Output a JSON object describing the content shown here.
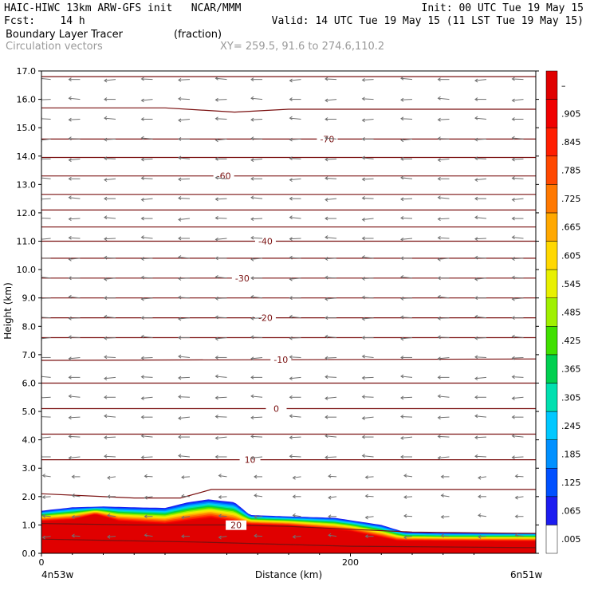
{
  "header": {
    "line1_left": "HAIC-HIWC 13km ARW-GFS init   NCAR/MMM",
    "line1_right": "Init: 00 UTC Tue 19 May 15",
    "line2_left": "Fcst:    14 h",
    "line2_right": "Valid: 14 UTC Tue 19 May 15 (11 LST Tue 19 May 15)",
    "line3_field": "Boundary Layer Tracer",
    "line3_units": "(fraction)",
    "line4_field": "Circulation vectors",
    "line4_xy": "XY= 259.5, 91.6 to 274.6,110.2"
  },
  "colors": {
    "contour": "#7a1010",
    "vector": "#707070",
    "header_grey": "#9a9a9a"
  },
  "chart_data": {
    "type": "heatmap",
    "xlabel": "Distance (km)",
    "ylabel": "Height (km)",
    "xlim": [
      0,
      320
    ],
    "ylim": [
      0,
      17
    ],
    "x_ticks": [
      {
        "value": 0,
        "label": "0"
      },
      {
        "value": 200,
        "label": "200"
      }
    ],
    "y_ticks": [
      "0.0",
      "1.0",
      "2.0",
      "3.0",
      "4.0",
      "5.0",
      "6.0",
      "7.0",
      "8.0",
      "9.0",
      "10.0",
      "11.0",
      "12.0",
      "13.0",
      "14.0",
      "15.0",
      "16.0",
      "17.0"
    ],
    "endpoint_labels": {
      "left": "4n53w",
      "right": "6n51w"
    },
    "tracer_fraction": {
      "colorbar_labels": [
        ".005",
        ".065",
        ".125",
        ".185",
        ".245",
        ".305",
        ".365",
        ".425",
        ".485",
        ".545",
        ".605",
        ".665",
        ".725",
        ".785",
        ".845",
        ".905",
        "–"
      ],
      "colorbar_colors": [
        "#ffffff",
        "#1c1cf0",
        "#0050ff",
        "#0090ff",
        "#00c8ff",
        "#00e0b0",
        "#00d050",
        "#40e000",
        "#a0f000",
        "#e8f000",
        "#ffd800",
        "#ffa800",
        "#ff7800",
        "#ff4800",
        "#ff1e00",
        "#f00000",
        "#e00000"
      ],
      "top_km": [
        {
          "x": 0,
          "h": 1.5
        },
        {
          "x": 20,
          "h": 1.62
        },
        {
          "x": 40,
          "h": 1.65
        },
        {
          "x": 60,
          "h": 1.62
        },
        {
          "x": 80,
          "h": 1.6
        },
        {
          "x": 95,
          "h": 1.8
        },
        {
          "x": 108,
          "h": 1.9
        },
        {
          "x": 125,
          "h": 1.8
        },
        {
          "x": 135,
          "h": 1.35
        },
        {
          "x": 160,
          "h": 1.3
        },
        {
          "x": 190,
          "h": 1.25
        },
        {
          "x": 220,
          "h": 1.0
        },
        {
          "x": 235,
          "h": 0.75
        },
        {
          "x": 260,
          "h": 0.72
        },
        {
          "x": 300,
          "h": 0.72
        },
        {
          "x": 320,
          "h": 0.72
        }
      ],
      "full_km": [
        {
          "x": 0,
          "h": 1.1
        },
        {
          "x": 20,
          "h": 1.15
        },
        {
          "x": 35,
          "h": 1.35
        },
        {
          "x": 50,
          "h": 1.1
        },
        {
          "x": 80,
          "h": 1.0
        },
        {
          "x": 110,
          "h": 1.2
        },
        {
          "x": 130,
          "h": 1.0
        },
        {
          "x": 160,
          "h": 0.95
        },
        {
          "x": 200,
          "h": 0.75
        },
        {
          "x": 230,
          "h": 0.42
        },
        {
          "x": 320,
          "h": 0.4
        }
      ]
    },
    "temperature_contours": [
      {
        "label": "",
        "levels": [
          [
            0,
            16.8
          ],
          [
            320,
            16.8
          ]
        ]
      },
      {
        "label": "",
        "levels": [
          [
            0,
            15.7
          ],
          [
            80,
            15.7
          ],
          [
            125,
            15.55
          ],
          [
            160,
            15.65
          ],
          [
            320,
            15.65
          ]
        ]
      },
      {
        "label": "-70",
        "label_x": 185,
        "levels": [
          [
            0,
            14.6
          ],
          [
            320,
            14.6
          ]
        ]
      },
      {
        "label": "",
        "levels": [
          [
            0,
            13.95
          ],
          [
            320,
            13.95
          ]
        ]
      },
      {
        "label": "-60",
        "label_x": 118,
        "levels": [
          [
            0,
            13.3
          ],
          [
            320,
            13.3
          ]
        ]
      },
      {
        "label": "",
        "levels": [
          [
            0,
            12.65
          ],
          [
            320,
            12.65
          ]
        ]
      },
      {
        "label": "",
        "levels": [
          [
            0,
            12.1
          ],
          [
            320,
            12.1
          ]
        ]
      },
      {
        "label": "",
        "levels": [
          [
            0,
            11.5
          ],
          [
            320,
            11.5
          ]
        ]
      },
      {
        "label": "-40",
        "label_x": 145,
        "levels": [
          [
            0,
            11.0
          ],
          [
            320,
            11.0
          ]
        ]
      },
      {
        "label": "",
        "levels": [
          [
            0,
            10.4
          ],
          [
            320,
            10.4
          ]
        ]
      },
      {
        "label": "-30",
        "label_x": 130,
        "levels": [
          [
            0,
            9.7
          ],
          [
            320,
            9.7
          ]
        ]
      },
      {
        "label": "",
        "levels": [
          [
            0,
            9.0
          ],
          [
            320,
            9.0
          ]
        ]
      },
      {
        "label": "-20",
        "label_x": 145,
        "levels": [
          [
            0,
            8.3
          ],
          [
            320,
            8.3
          ]
        ]
      },
      {
        "label": "",
        "levels": [
          [
            0,
            7.6
          ],
          [
            320,
            7.6
          ]
        ]
      },
      {
        "label": "-10",
        "label_x": 155,
        "levels": [
          [
            0,
            6.8
          ],
          [
            320,
            6.85
          ]
        ]
      },
      {
        "label": "",
        "levels": [
          [
            0,
            6.0
          ],
          [
            320,
            6.0
          ]
        ]
      },
      {
        "label": "0",
        "label_x": 152,
        "levels": [
          [
            0,
            5.1
          ],
          [
            320,
            5.1
          ]
        ]
      },
      {
        "label": "",
        "levels": [
          [
            0,
            4.2
          ],
          [
            320,
            4.2
          ]
        ]
      },
      {
        "label": "10",
        "label_x": 135,
        "levels": [
          [
            0,
            3.3
          ],
          [
            320,
            3.3
          ]
        ]
      },
      {
        "label": "",
        "levels": [
          [
            0,
            2.1
          ],
          [
            60,
            1.95
          ],
          [
            90,
            1.95
          ],
          [
            110,
            2.25
          ],
          [
            160,
            2.25
          ],
          [
            320,
            2.25
          ]
        ]
      },
      {
        "label": "20",
        "label_x": 126,
        "levels": [
          [
            0,
            1.05
          ],
          [
            60,
            1.0
          ],
          [
            120,
            1.0
          ],
          [
            160,
            0.95
          ],
          [
            200,
            0.85
          ],
          [
            240,
            0.75
          ],
          [
            320,
            0.7
          ]
        ]
      },
      {
        "label": "",
        "levels": [
          [
            0,
            0.5
          ],
          [
            100,
            0.4
          ],
          [
            200,
            0.25
          ],
          [
            320,
            0.2
          ]
        ]
      }
    ],
    "vectors": {
      "x_km": [
        6,
        25,
        48,
        72,
        96,
        120,
        143,
        168,
        191,
        215,
        240,
        264,
        288,
        312
      ],
      "z_km": [
        16.7,
        16.0,
        15.3,
        14.6,
        13.9,
        13.2,
        12.5,
        11.8,
        11.1,
        10.4,
        9.7,
        9.0,
        8.3,
        7.6,
        6.9,
        6.2,
        5.5,
        4.8,
        4.1,
        3.4,
        2.7,
        2.0,
        1.3,
        0.6
      ],
      "u_dir": "westward"
    }
  }
}
